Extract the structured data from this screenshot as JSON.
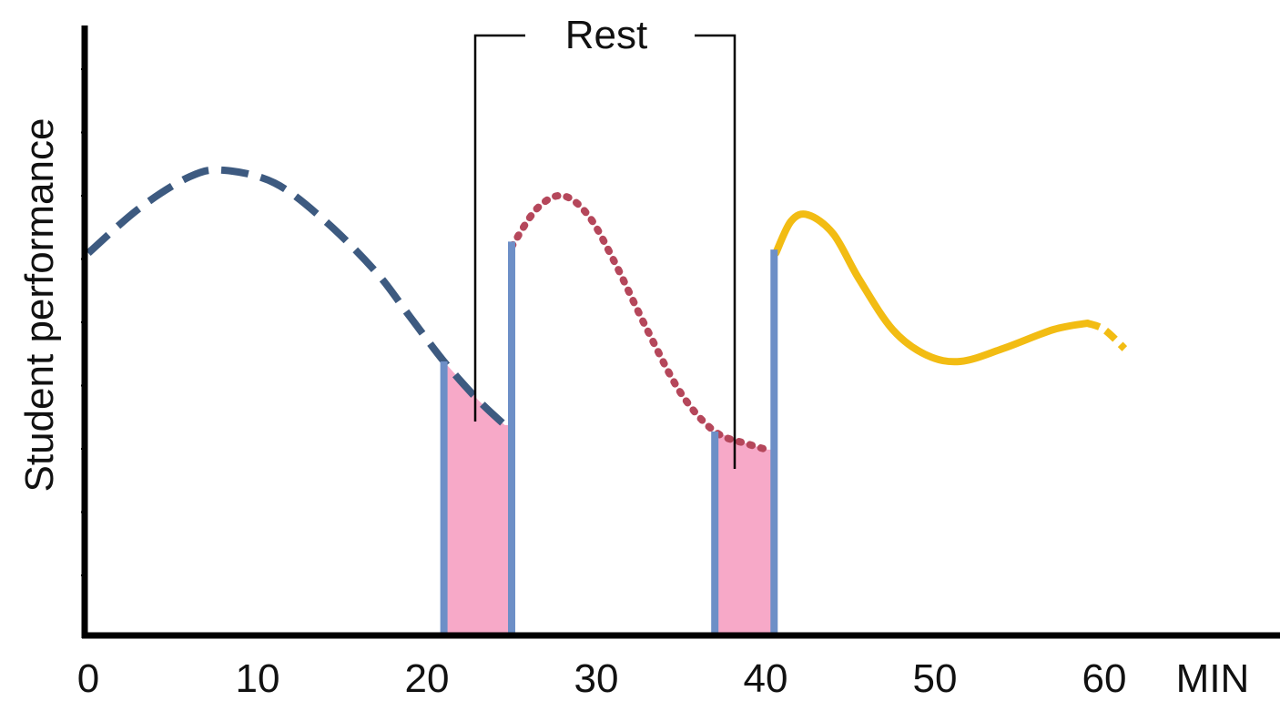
{
  "chart_data": {
    "type": "line",
    "title": "",
    "ylabel": "Student performance",
    "xlabel": "MIN",
    "xlim": [
      0,
      70
    ],
    "x_ticks": [
      0,
      10,
      20,
      30,
      40,
      50,
      60
    ],
    "x_tick_labels": [
      "0",
      "10",
      "20",
      "30",
      "40",
      "50",
      "60"
    ],
    "y_ticks_shown_without_labels": true,
    "grid": false,
    "legend": "none",
    "series": [
      {
        "style": "dashed",
        "color": "#3d5a80",
        "points": [
          [
            0,
            6.0
          ],
          [
            3,
            6.7
          ],
          [
            6,
            7.2
          ],
          [
            8,
            7.3
          ],
          [
            11,
            7.1
          ],
          [
            14,
            6.5
          ],
          [
            17,
            5.7
          ],
          [
            19,
            5.0
          ],
          [
            21,
            4.3
          ],
          [
            23,
            3.7
          ],
          [
            24.6,
            3.3
          ]
        ]
      },
      {
        "style": "dotted",
        "color": "#b5475b",
        "points": [
          [
            25,
            6.1
          ],
          [
            26.5,
            6.7
          ],
          [
            28,
            6.9
          ],
          [
            29.5,
            6.6
          ],
          [
            31,
            5.9
          ],
          [
            33,
            4.8
          ],
          [
            35,
            3.8
          ],
          [
            37,
            3.2
          ],
          [
            39,
            3.0
          ],
          [
            40.3,
            2.9
          ]
        ]
      },
      {
        "style": "solid",
        "color": "#f2bc13",
        "points": [
          [
            40.6,
            6.0
          ],
          [
            41.5,
            6.5
          ],
          [
            42.5,
            6.6
          ],
          [
            44,
            6.3
          ],
          [
            45.5,
            5.6
          ],
          [
            47.5,
            4.8
          ],
          [
            49.5,
            4.4
          ],
          [
            51.5,
            4.3
          ],
          [
            54,
            4.5
          ],
          [
            57,
            4.8
          ],
          [
            59,
            4.9
          ]
        ]
      },
      {
        "style": "dashed",
        "color": "#f2bc13",
        "points": [
          [
            59,
            4.9
          ],
          [
            60,
            4.8
          ],
          [
            61.2,
            4.5
          ]
        ]
      }
    ],
    "rest_periods": [
      {
        "label": "Rest",
        "start": 21,
        "end": 25,
        "color": "#f7a9c8"
      },
      {
        "label": "Rest",
        "start": 37,
        "end": 40.5,
        "color": "#f7a9c8"
      }
    ],
    "rest_marker_color": "#6d8fc7",
    "annotations": [
      {
        "text": "Rest",
        "points_to": [
          23,
          39
        ]
      }
    ]
  }
}
